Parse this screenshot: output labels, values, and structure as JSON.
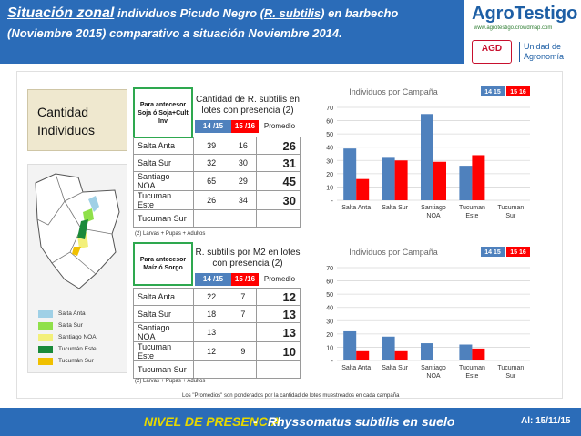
{
  "header": {
    "title_lead": "Situación zonal",
    "title_rest_1": " individuos Picudo Negro (",
    "species": "R. subtilis",
    "title_rest_2": ") en barbecho",
    "line2": "(Noviembre 2015) comparativo a situación Noviembre 2014."
  },
  "logo": {
    "name": "AgroTestigo",
    "url": "www.agrotestigo.crowdmap.com",
    "agd": "AGD",
    "unit_line1": "Unidad de",
    "unit_line2": "Agronomía"
  },
  "side_label": {
    "line1": "Cantidad",
    "line2": "Individuos"
  },
  "legend": [
    {
      "label": "Salta Anta",
      "color": "#9fd0e6"
    },
    {
      "label": "Salta Sur",
      "color": "#8fe04a"
    },
    {
      "label": "Santiago NOA",
      "color": "#f3f07a"
    },
    {
      "label": "Tucumán Este",
      "color": "#1a8a3a"
    },
    {
      "label": "Tucumán Sur",
      "color": "#f0c000"
    }
  ],
  "colors": {
    "c1415": "#4f81bd",
    "c1516": "#ff0000",
    "header_blue": "#2b6cb8",
    "green": "#2ea84f"
  },
  "table1": {
    "antecesor": "Para antecesor Soja ó Soja+Cult Inv",
    "title": "Cantidad de R. subtilis en lotes con presencia (2)",
    "col1": "14 /15",
    "col2": "15 /16",
    "col3": "Promedio",
    "rows": [
      {
        "name": "Salta Anta",
        "a": "39",
        "b": "16",
        "p": "26"
      },
      {
        "name": "Salta Sur",
        "a": "32",
        "b": "30",
        "p": "31"
      },
      {
        "name": "Santiago NOA",
        "a": "65",
        "b": "29",
        "p": "45"
      },
      {
        "name": "Tucuman Este",
        "a": "26",
        "b": "34",
        "p": "30"
      },
      {
        "name": "Tucuman Sur",
        "a": "",
        "b": "",
        "p": ""
      }
    ],
    "note": "(2) Larvas + Pupas + Adultos"
  },
  "table2": {
    "antecesor": "Para antecesor Maíz ó Sorgo",
    "title": "R. subtilis por M2 en lotes con presencia (2)",
    "col1": "14 /15",
    "col2": "15 /16",
    "col3": "Promedio",
    "rows": [
      {
        "name": "Salta Anta",
        "a": "22",
        "b": "7",
        "p": "12"
      },
      {
        "name": "Salta Sur",
        "a": "18",
        "b": "7",
        "p": "13"
      },
      {
        "name": "Santiago NOA",
        "a": "13",
        "b": "",
        "p": "13"
      },
      {
        "name": "Tucuman Este",
        "a": "12",
        "b": "9",
        "p": "10"
      },
      {
        "name": "Tucuman Sur",
        "a": "",
        "b": "",
        "p": ""
      }
    ],
    "note": "(2) Larvas + Pupas + Adultos"
  },
  "chart_data": [
    {
      "type": "bar",
      "title": "Individuos  por Campaña",
      "categories": [
        "Salta Anta",
        "Salta Sur",
        "Santiago NOA",
        "Tucuman Este",
        "Tucuman Sur"
      ],
      "series": [
        {
          "name": "14 15",
          "values": [
            39,
            32,
            65,
            26,
            0
          ]
        },
        {
          "name": "15 16",
          "values": [
            16,
            30,
            29,
            34,
            0
          ]
        }
      ],
      "yticks": [
        "-",
        "10",
        "20",
        "30",
        "40",
        "50",
        "60",
        "70"
      ],
      "ylim": [
        0,
        70
      ]
    },
    {
      "type": "bar",
      "title": "Individuos  por Campaña",
      "categories": [
        "Salta Anta",
        "Salta Sur",
        "Santiago NOA",
        "Tucuman Este",
        "Tucuman Sur"
      ],
      "series": [
        {
          "name": "14 15",
          "values": [
            22,
            18,
            13,
            12,
            0
          ]
        },
        {
          "name": "15 16",
          "values": [
            7,
            7,
            0,
            9,
            0
          ]
        }
      ],
      "yticks": [
        "-",
        "10",
        "20",
        "30",
        "40",
        "50",
        "60",
        "70"
      ],
      "ylim": [
        0,
        70
      ]
    }
  ],
  "promedio_note": "Los \"Promedios\" son ponderados por la cantidad de lotes muestreados en cada campaña",
  "footer": {
    "nivel": "NIVEL DE PRESENCIA",
    "sep": " - ",
    "species": "Rhyssomatus subtilis en suelo",
    "date": "Al: 15/11/15"
  }
}
